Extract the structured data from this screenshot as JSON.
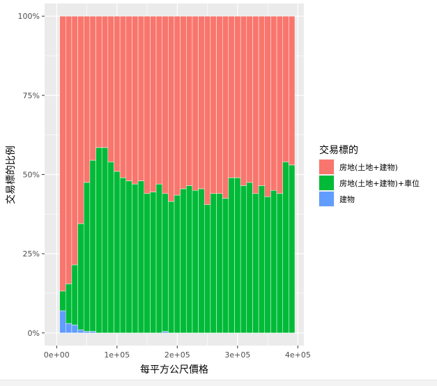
{
  "chart_data": {
    "type": "bar",
    "stacked": "fill",
    "title": "",
    "xlabel": "每平方公尺價格",
    "ylabel": "交易標的比例",
    "x_ticks": [
      "0e+00",
      "1e+05",
      "2e+05",
      "3e+05",
      "4e+05"
    ],
    "x_tick_values": [
      0,
      100000,
      200000,
      300000,
      400000
    ],
    "xlim": [
      -20000,
      410000
    ],
    "y_ticks": [
      "0%",
      "25%",
      "50%",
      "75%",
      "100%"
    ],
    "y_tick_values": [
      0,
      0.25,
      0.5,
      0.75,
      1.0
    ],
    "ylim": [
      -0.04,
      1.04
    ],
    "grid": true,
    "background": "#ebebeb",
    "bin_width": 10000,
    "legend": {
      "position": "right",
      "title": "交易標的",
      "items": [
        {
          "label": "房地(土地+建物)",
          "color": "#F8766D"
        },
        {
          "label": "房地(土地+建物)+車位",
          "color": "#00BA38"
        },
        {
          "label": "建物",
          "color": "#619CFF"
        }
      ]
    },
    "x": [
      10000,
      20000,
      30000,
      40000,
      50000,
      60000,
      70000,
      80000,
      90000,
      100000,
      110000,
      120000,
      130000,
      140000,
      150000,
      160000,
      170000,
      180000,
      190000,
      200000,
      210000,
      220000,
      230000,
      240000,
      250000,
      260000,
      270000,
      280000,
      290000,
      300000,
      310000,
      320000,
      330000,
      340000,
      350000,
      360000,
      370000,
      380000,
      390000
    ],
    "series": [
      {
        "name": "房地(土地+建物)",
        "color": "#F8766D",
        "values": [
          0.868,
          0.845,
          0.785,
          0.655,
          0.525,
          0.455,
          0.415,
          0.415,
          0.46,
          0.49,
          0.51,
          0.52,
          0.53,
          0.52,
          0.56,
          0.555,
          0.53,
          0.56,
          0.585,
          0.565,
          0.545,
          0.535,
          0.55,
          0.545,
          0.595,
          0.56,
          0.56,
          0.575,
          0.51,
          0.51,
          0.535,
          0.525,
          0.56,
          0.535,
          0.57,
          0.55,
          0.56,
          0.46,
          0.47
        ]
      },
      {
        "name": "房地(土地+建物)+車位",
        "color": "#00BA38",
        "values": [
          0.062,
          0.125,
          0.19,
          0.335,
          0.47,
          0.54,
          0.585,
          0.585,
          0.54,
          0.51,
          0.49,
          0.48,
          0.47,
          0.48,
          0.44,
          0.445,
          0.47,
          0.435,
          0.415,
          0.435,
          0.455,
          0.465,
          0.45,
          0.455,
          0.405,
          0.44,
          0.44,
          0.425,
          0.49,
          0.49,
          0.465,
          0.475,
          0.44,
          0.465,
          0.43,
          0.45,
          0.44,
          0.54,
          0.53
        ]
      },
      {
        "name": "建物",
        "color": "#619CFF",
        "values": [
          0.07,
          0.03,
          0.025,
          0.01,
          0.005,
          0.005,
          0,
          0,
          0,
          0,
          0,
          0,
          0,
          0,
          0,
          0,
          0,
          0.005,
          0,
          0,
          0,
          0,
          0,
          0,
          0,
          0,
          0,
          0,
          0,
          0,
          0,
          0,
          0,
          0,
          0,
          0,
          0,
          0,
          0
        ]
      }
    ]
  }
}
